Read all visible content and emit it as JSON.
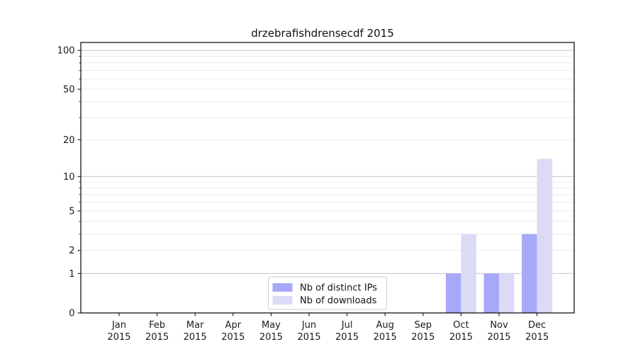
{
  "chart_data": {
    "type": "bar",
    "title": "drzebrafishdrensecdf 2015",
    "categories": [
      "Jan",
      "Feb",
      "Mar",
      "Apr",
      "May",
      "Jun",
      "Jul",
      "Aug",
      "Sep",
      "Oct",
      "Nov",
      "Dec"
    ],
    "category_year": "2015",
    "series": [
      {
        "name": "Nb of distinct IPs",
        "color": "#a8a8f8",
        "values": [
          0,
          0,
          0,
          0,
          0,
          0,
          0,
          0,
          0,
          1,
          1,
          3
        ]
      },
      {
        "name": "Nb of downloads",
        "color": "#dbdbf8",
        "values": [
          0,
          0,
          0,
          0,
          0,
          0,
          0,
          0,
          0,
          3,
          1,
          14
        ]
      }
    ],
    "yscale": "log1p",
    "ylim": [
      0,
      115
    ],
    "yticks": [
      0,
      1,
      2,
      5,
      10,
      20,
      50,
      100
    ],
    "ymajor_grid": [
      1,
      10,
      100
    ],
    "yminor_grid": [
      2,
      3,
      4,
      5,
      6,
      7,
      8,
      9,
      20,
      30,
      40,
      50,
      60,
      70,
      80,
      90
    ],
    "grid": true,
    "legend_position": "lower center",
    "colors": {
      "background": "#ffffff",
      "axis": "#000000",
      "major_grid": "#c4c4c4",
      "minor_grid": "#ebebeb",
      "text": "#1a1a1a",
      "legend_border": "#cccccc"
    }
  }
}
